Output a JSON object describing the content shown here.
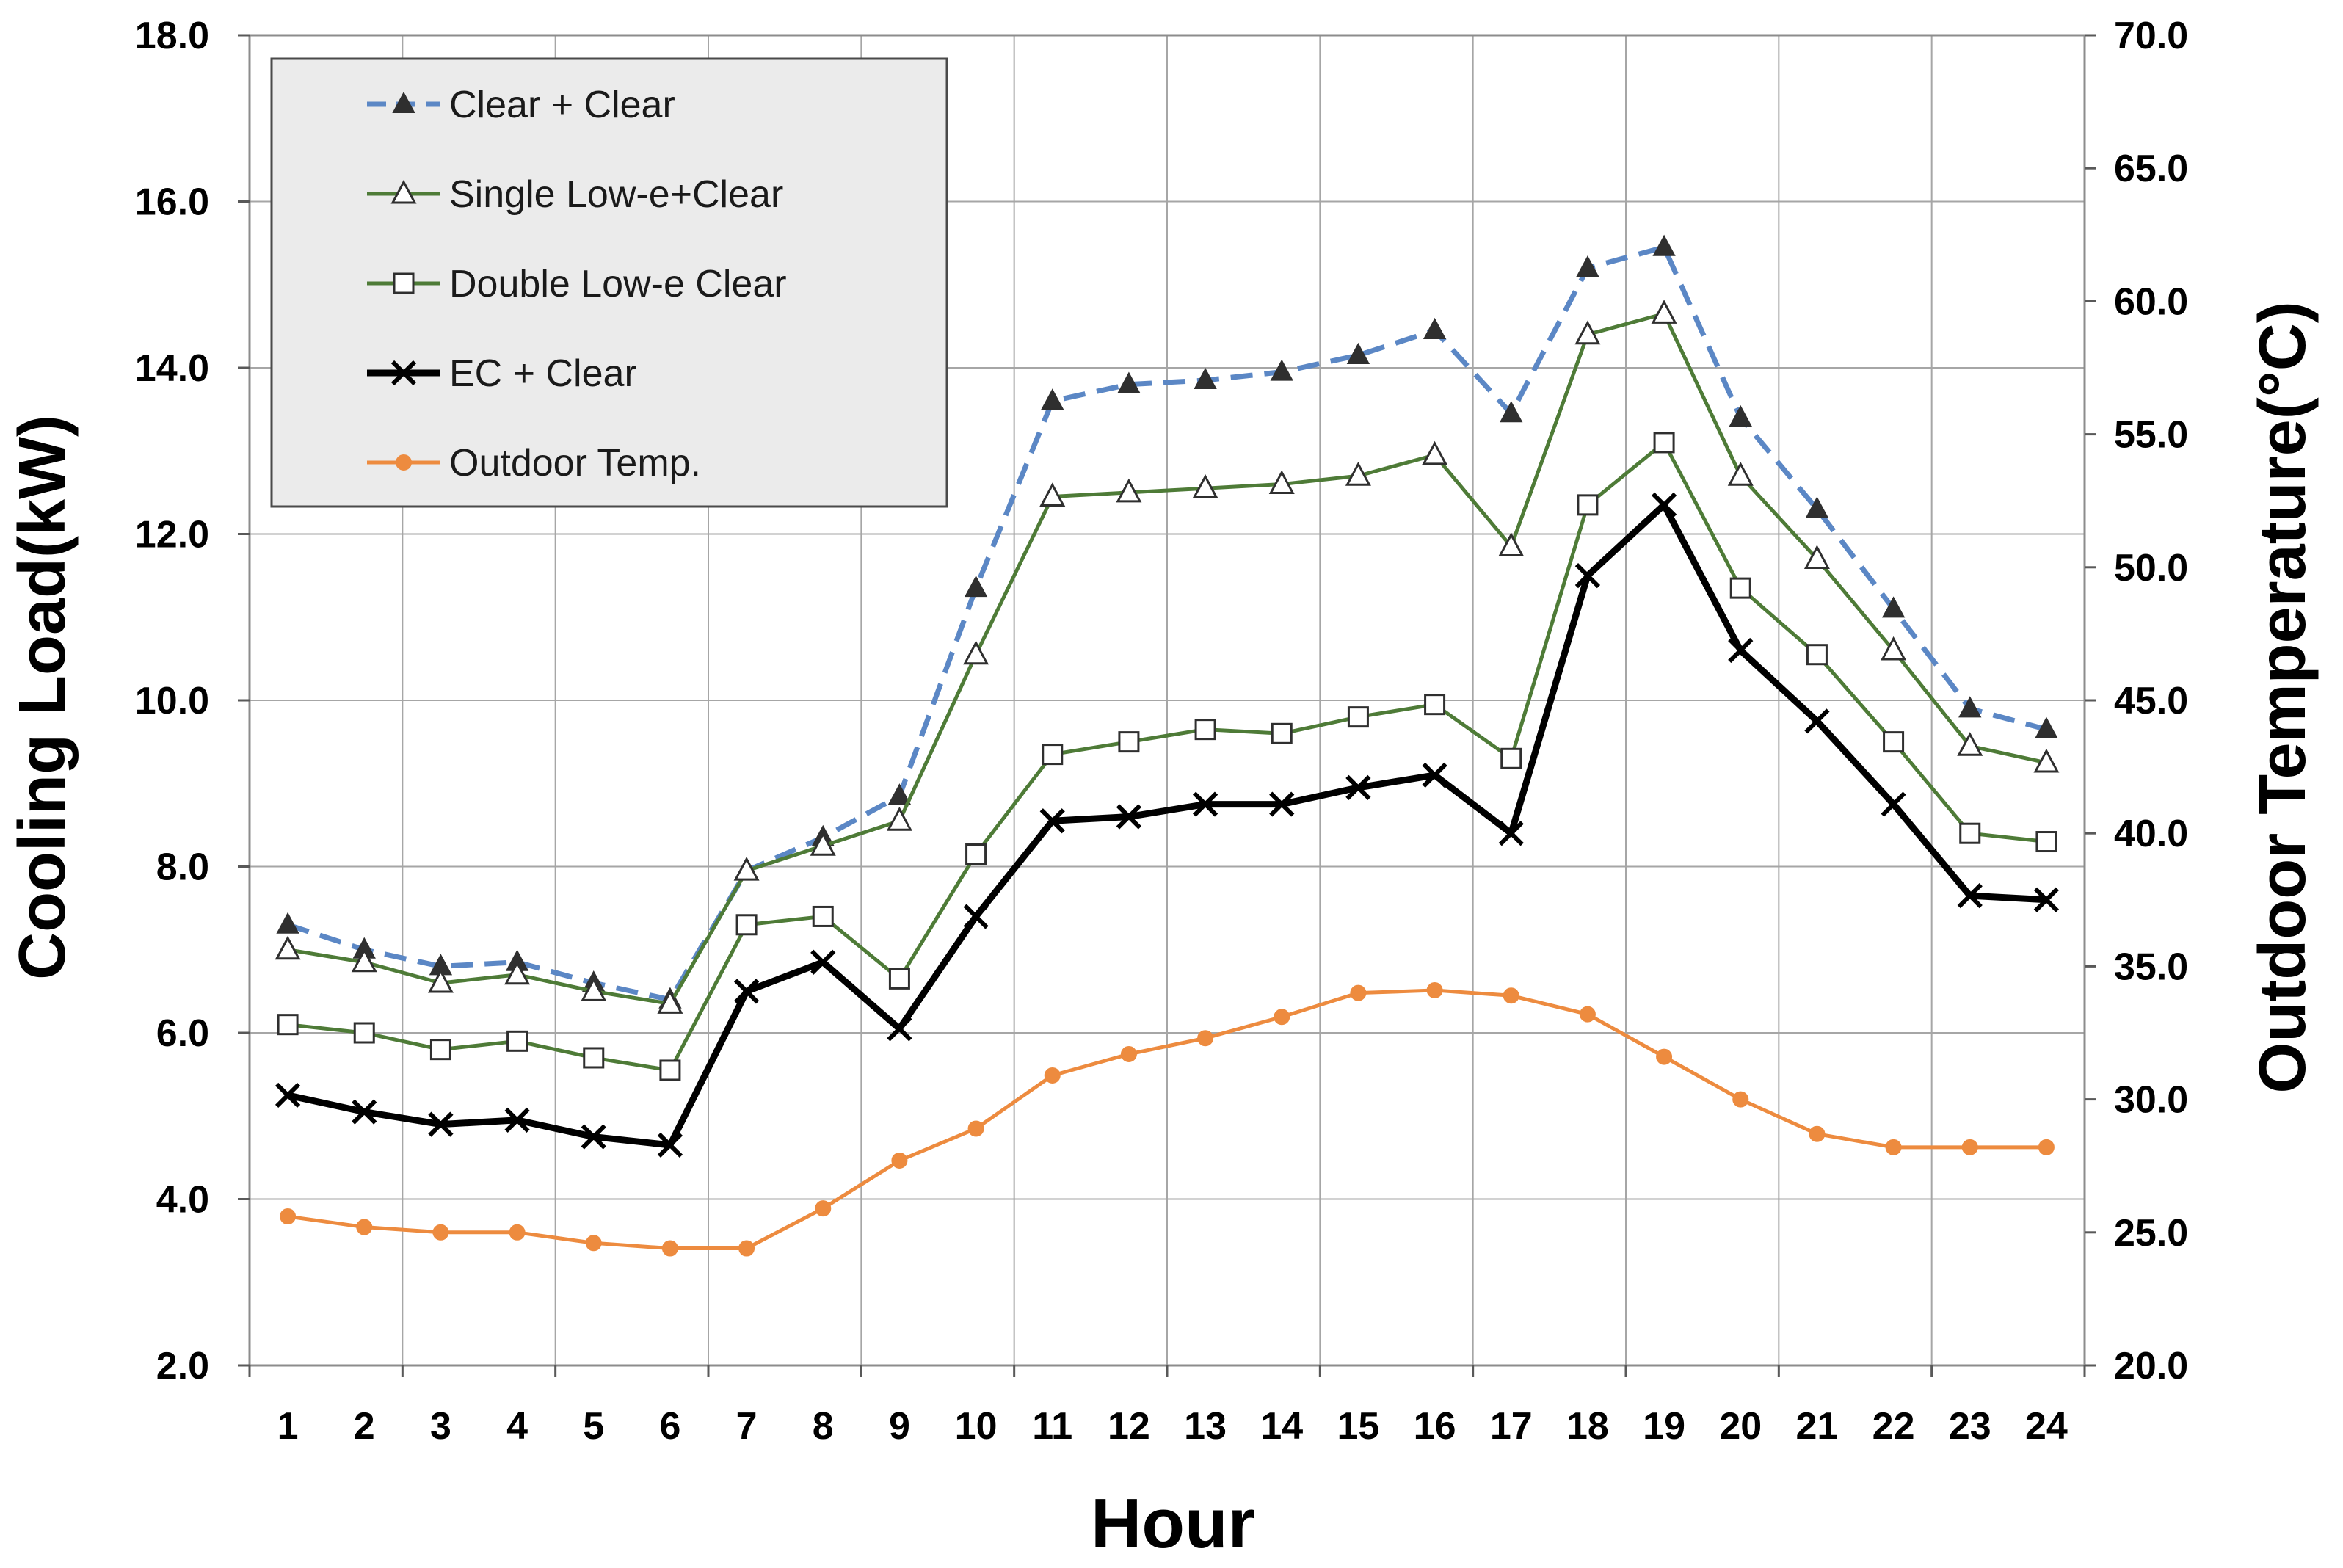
{
  "chart_data": {
    "type": "line",
    "title": "",
    "xlabel": "Hour",
    "ylabel": "Cooling Load(kW)",
    "y2label": "Outdoor Temperature(°C)",
    "x": [
      1,
      2,
      3,
      4,
      5,
      6,
      7,
      8,
      9,
      10,
      11,
      12,
      13,
      14,
      15,
      16,
      17,
      18,
      19,
      20,
      21,
      22,
      23,
      24
    ],
    "x_tick_labels": [
      "1",
      "2",
      "3",
      "4",
      "5",
      "6",
      "7",
      "8",
      "9",
      "10",
      "11",
      "12",
      "13",
      "14",
      "15",
      "16",
      "17",
      "18",
      "19",
      "20",
      "21",
      "22",
      "23",
      "24"
    ],
    "ylim": [
      2.0,
      18.0
    ],
    "y_ticks": [
      2.0,
      4.0,
      6.0,
      8.0,
      10.0,
      12.0,
      14.0,
      16.0,
      18.0
    ],
    "y_tick_labels": [
      "2.0",
      "4.0",
      "6.0",
      "8.0",
      "10.0",
      "12.0",
      "14.0",
      "16.0",
      "18.0"
    ],
    "y2lim": [
      20.0,
      70.0
    ],
    "y2_ticks": [
      20.0,
      25.0,
      30.0,
      35.0,
      40.0,
      45.0,
      50.0,
      55.0,
      60.0,
      65.0,
      70.0
    ],
    "y2_tick_labels": [
      "20.0",
      "25.0",
      "30.0",
      "35.0",
      "40.0",
      "45.0",
      "50.0",
      "55.0",
      "60.0",
      "65.0",
      "70.0"
    ],
    "grid": true,
    "legend_position": "top-left",
    "series": [
      {
        "name": "Clear + Clear",
        "axis": "left",
        "color": "#5b87c5",
        "dash": "dashed",
        "marker": "filled-triangle",
        "values": [
          7.3,
          7.0,
          6.8,
          6.85,
          6.6,
          6.4,
          7.95,
          8.35,
          8.85,
          11.35,
          13.6,
          13.8,
          13.85,
          13.95,
          14.15,
          14.45,
          13.45,
          15.2,
          15.45,
          13.4,
          12.3,
          11.1,
          9.9,
          9.65
        ]
      },
      {
        "name": "Single Low-e+Clear",
        "axis": "left",
        "color": "#4e7b37",
        "dash": "solid",
        "marker": "open-triangle",
        "values": [
          7.0,
          6.85,
          6.6,
          6.7,
          6.5,
          6.35,
          7.95,
          8.25,
          8.55,
          10.55,
          12.45,
          12.5,
          12.55,
          12.6,
          12.7,
          12.95,
          11.85,
          14.4,
          14.65,
          12.7,
          11.7,
          10.6,
          9.45,
          9.25
        ]
      },
      {
        "name": "Double Low-e Clear",
        "axis": "left",
        "color": "#4e7b37",
        "dash": "solid",
        "marker": "open-square",
        "values": [
          6.1,
          6.0,
          5.8,
          5.9,
          5.7,
          5.55,
          7.3,
          7.4,
          6.65,
          8.15,
          9.35,
          9.5,
          9.65,
          9.6,
          9.8,
          9.95,
          9.3,
          12.35,
          13.1,
          11.35,
          10.55,
          9.5,
          8.4,
          8.3
        ]
      },
      {
        "name": "EC + Clear",
        "axis": "left",
        "color": "#000000",
        "dash": "solid",
        "marker": "cross",
        "values": [
          5.25,
          5.05,
          4.9,
          4.95,
          4.75,
          4.65,
          6.5,
          6.85,
          6.05,
          7.4,
          8.55,
          8.6,
          8.75,
          8.75,
          8.95,
          9.1,
          8.4,
          11.5,
          12.35,
          10.6,
          9.75,
          8.75,
          7.65,
          7.6
        ]
      },
      {
        "name": "Outdoor Temp.",
        "axis": "right",
        "color": "#ed8b3f",
        "dash": "solid",
        "marker": "dot",
        "values": [
          25.6,
          25.2,
          25.0,
          25.0,
          24.6,
          24.4,
          24.4,
          25.9,
          27.7,
          28.9,
          30.9,
          31.7,
          32.3,
          33.1,
          34.0,
          34.1,
          33.9,
          33.2,
          31.6,
          30.0,
          28.7,
          28.2,
          28.2,
          28.2
        ]
      }
    ]
  }
}
